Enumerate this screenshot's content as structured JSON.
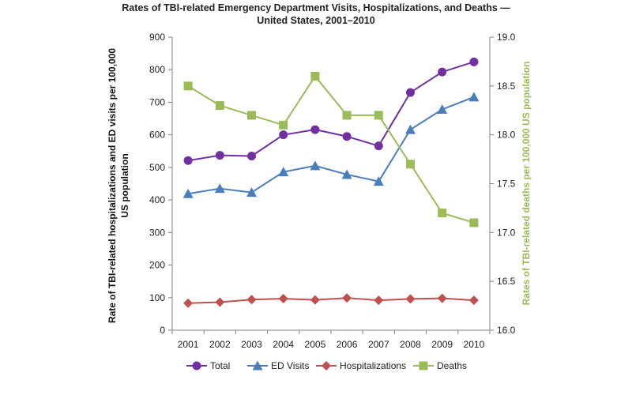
{
  "chart_data": {
    "type": "line",
    "title_line1": "Rates of TBI-related Emergency Department Visits, Hospitalizations, and Deaths —",
    "title_line2": "United States, 2001–2010",
    "ylabel_left_line1": "Rate of TBI-related hospitalizations and ED visits per 100,000",
    "ylabel_left_line2": "US population",
    "ylabel_right": "Rates of TBI-related deaths per 100,000 US population",
    "categories": [
      "2001",
      "2002",
      "2003",
      "2004",
      "2005",
      "2006",
      "2007",
      "2008",
      "2009",
      "2010"
    ],
    "ylim_left": [
      0,
      900
    ],
    "yticks_left": [
      "0",
      "100",
      "200",
      "300",
      "400",
      "500",
      "600",
      "700",
      "800",
      "900"
    ],
    "ylim_right": [
      16.0,
      19.0
    ],
    "yticks_right": [
      "16.0",
      "16.5",
      "17.0",
      "17.5",
      "18.0",
      "18.5",
      "19.0"
    ],
    "grid": false,
    "legend_position": "bottom",
    "series": [
      {
        "name": "Total",
        "axis": "left",
        "color": "#7030a0",
        "marker": "circle",
        "values": [
          521,
          537,
          535,
          600,
          616,
          595,
          566,
          730,
          793,
          824
        ]
      },
      {
        "name": "ED Visits",
        "axis": "left",
        "color": "#4a7ebb",
        "marker": "triangle",
        "values": [
          419,
          435,
          423,
          486,
          505,
          478,
          457,
          616,
          678,
          716
        ]
      },
      {
        "name": "Hospitalizations",
        "axis": "left",
        "color": "#c0504d",
        "marker": "diamond",
        "values": [
          83,
          86,
          94,
          97,
          93,
          99,
          92,
          96,
          98,
          92
        ]
      },
      {
        "name": "Deaths",
        "axis": "right",
        "color": "#9bbb59",
        "marker": "square",
        "values": [
          18.5,
          18.3,
          18.2,
          18.1,
          18.6,
          18.2,
          18.2,
          17.7,
          17.2,
          17.1
        ]
      }
    ]
  }
}
